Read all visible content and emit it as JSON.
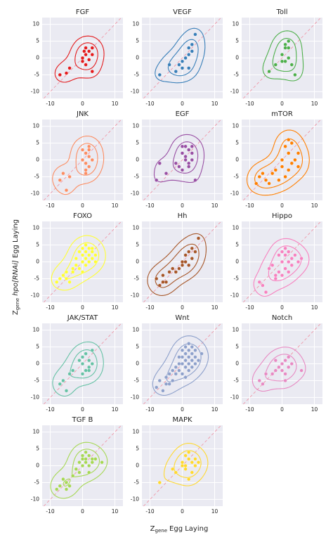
{
  "axis_labels": {
    "x": {
      "symbol": "Z",
      "subscript": "gene",
      "text": "Egg Laying"
    },
    "y": {
      "symbol": "Z",
      "subscript": "gene",
      "italic": "hpo[RNAi]",
      "text": "Egg Laying"
    }
  },
  "chart_data": [
    {
      "type": "scatter",
      "title": "FGF",
      "color": "#e41a1c",
      "xlim": [
        -12.5,
        12.5
      ],
      "ylim": [
        -12,
        12
      ],
      "xticks": [
        -10,
        0,
        10
      ],
      "yticks": [
        -10,
        -5,
        0,
        5,
        10
      ],
      "grid": true,
      "x": [
        -7,
        -5,
        -4,
        0,
        0,
        1,
        1,
        2,
        2,
        3,
        3,
        3,
        1,
        0.5
      ],
      "values": [
        -5,
        -4.5,
        -3,
        -1,
        0,
        1,
        3,
        2,
        -0.5,
        3,
        -4,
        1,
        -2,
        2
      ]
    },
    {
      "type": "scatter",
      "title": "VEGF",
      "color": "#377eb8",
      "xlim": [
        -12.5,
        12.5
      ],
      "ylim": [
        -12,
        12
      ],
      "xticks": [
        -10,
        0,
        10
      ],
      "yticks": [
        -10,
        -5,
        0,
        5,
        10
      ],
      "grid": true,
      "x": [
        -7,
        -4,
        -2,
        0,
        1,
        2,
        2,
        3,
        3,
        2,
        0,
        4,
        -1
      ],
      "values": [
        -5,
        -2,
        -4,
        -1,
        0,
        3,
        -3,
        2,
        4,
        1,
        -3,
        7,
        -2
      ]
    },
    {
      "type": "scatter",
      "title": "Toll",
      "color": "#4daf4a",
      "xlim": [
        -12.5,
        12.5
      ],
      "ylim": [
        -12,
        12
      ],
      "xticks": [
        -10,
        0,
        10
      ],
      "yticks": [
        -10,
        -5,
        0,
        5,
        10
      ],
      "grid": true,
      "x": [
        -4,
        -2,
        0,
        1,
        1,
        2,
        3,
        4,
        0,
        2,
        1,
        2
      ],
      "values": [
        -4,
        -2,
        1,
        4,
        3,
        3,
        -2,
        -5,
        -1,
        0,
        -1,
        5
      ]
    },
    {
      "type": "scatter",
      "title": "JNK",
      "color": "#fc8d62",
      "xlim": [
        -12.5,
        12.5
      ],
      "ylim": [
        -12,
        12
      ],
      "xticks": [
        -10,
        0,
        10
      ],
      "yticks": [
        -10,
        -5,
        0,
        5,
        10
      ],
      "grid": true,
      "x": [
        -7,
        -6,
        -5,
        -4,
        0,
        1,
        1,
        2,
        2,
        1,
        2,
        3,
        0,
        1,
        2
      ],
      "values": [
        -6,
        -4,
        -9,
        -5,
        3,
        2,
        -1,
        1,
        -2,
        -3,
        3,
        0,
        0,
        -4,
        4
      ]
    },
    {
      "type": "scatter",
      "title": "EGF",
      "color": "#984ea3",
      "xlim": [
        -12.5,
        12.5
      ],
      "ylim": [
        -12,
        12
      ],
      "xticks": [
        -10,
        0,
        10
      ],
      "yticks": [
        -10,
        -5,
        0,
        5,
        10
      ],
      "grid": true,
      "x": [
        -8,
        -7,
        -5,
        -2,
        -1,
        0,
        0,
        1,
        1,
        2,
        2,
        2,
        3,
        3,
        4,
        0,
        1,
        3
      ],
      "values": [
        -6,
        -1,
        -4,
        -1,
        -2,
        2,
        4,
        1,
        0,
        -1,
        -2,
        3,
        4,
        2,
        -6,
        -3,
        4,
        0
      ]
    },
    {
      "type": "scatter",
      "title": "mTOR",
      "color": "#ff7f00",
      "xlim": [
        -12.5,
        12.5
      ],
      "ylim": [
        -12,
        12
      ],
      "xticks": [
        -10,
        0,
        10
      ],
      "yticks": [
        -10,
        -5,
        0,
        5,
        10
      ],
      "grid": true,
      "x": [
        -8,
        -7,
        -6,
        -5,
        -4,
        -3,
        -2,
        0,
        0,
        1,
        2,
        2,
        3,
        3,
        4,
        5,
        -1,
        1,
        5,
        2
      ],
      "values": [
        -7,
        -5,
        -4,
        -6,
        -7,
        -4,
        -3,
        -2,
        0,
        4,
        6,
        2,
        5,
        -1,
        0,
        -2,
        -6,
        -5,
        2,
        -3
      ]
    },
    {
      "type": "scatter",
      "title": "FOXO",
      "color": "#ffff33",
      "xlim": [
        -12.5,
        12.5
      ],
      "ylim": [
        -12,
        12
      ],
      "xticks": [
        -10,
        0,
        10
      ],
      "yticks": [
        -10,
        -5,
        0,
        5,
        10
      ],
      "grid": true,
      "x": [
        -8,
        -7,
        -6,
        -5,
        -4,
        -3,
        -2,
        -1,
        0,
        0,
        1,
        1,
        2,
        2,
        3,
        3,
        4,
        -1,
        0,
        1,
        2,
        -2,
        3,
        4,
        1,
        0,
        -5,
        -3
      ],
      "values": [
        -6,
        -5,
        -4,
        -3,
        -6,
        -2,
        -1,
        -2,
        0,
        2,
        1,
        3,
        2,
        4,
        3,
        1,
        2,
        3,
        4,
        -1,
        0,
        1,
        4,
        0,
        5,
        -3,
        -5,
        -3
      ]
    },
    {
      "type": "scatter",
      "title": "Hh",
      "color": "#a65628",
      "xlim": [
        -12.5,
        12.5
      ],
      "ylim": [
        -12,
        12
      ],
      "xticks": [
        -10,
        0,
        10
      ],
      "yticks": [
        -10,
        -5,
        0,
        5,
        10
      ],
      "grid": true,
      "x": [
        -8,
        -7,
        -6,
        -5,
        -4,
        -3,
        -2,
        -1,
        0,
        0,
        1,
        2,
        2,
        3,
        3,
        4,
        5,
        -6,
        1
      ],
      "values": [
        -5,
        -7,
        -4,
        -6,
        -3,
        -2,
        -3,
        -2,
        0,
        -1,
        2,
        3,
        -1,
        1,
        4,
        3,
        7,
        -6,
        0
      ]
    },
    {
      "type": "scatter",
      "title": "Hippo",
      "color": "#f781bf",
      "xlim": [
        -12.5,
        12.5
      ],
      "ylim": [
        -12,
        12
      ],
      "xticks": [
        -10,
        0,
        10
      ],
      "yticks": [
        -10,
        -5,
        0,
        5,
        10
      ],
      "grid": true,
      "x": [
        -7,
        -6,
        -5,
        -4,
        -3,
        -2,
        -1,
        0,
        0,
        1,
        1,
        2,
        2,
        3,
        3,
        4,
        5,
        6,
        -1,
        0,
        2,
        1,
        -2
      ],
      "values": [
        -6,
        -7,
        -9,
        -2,
        -1,
        -4,
        -3,
        0,
        3,
        2,
        -2,
        3,
        -3,
        1,
        -1,
        2,
        0,
        1,
        2,
        -4,
        0,
        4,
        -5
      ]
    },
    {
      "type": "scatter",
      "title": "JAK/STAT",
      "color": "#66c2a5",
      "xlim": [
        -12.5,
        12.5
      ],
      "ylim": [
        -12,
        12
      ],
      "xticks": [
        -10,
        0,
        10
      ],
      "yticks": [
        -10,
        -5,
        0,
        5,
        10
      ],
      "grid": true,
      "x": [
        -7,
        -6,
        -5,
        -4,
        -3,
        0,
        0,
        1,
        1,
        2,
        2,
        3,
        -1,
        0,
        2,
        3
      ],
      "values": [
        -6,
        -5,
        -8,
        -3,
        -2,
        0,
        2,
        -2,
        3,
        1,
        -1,
        4,
        1,
        -3,
        -2,
        0
      ]
    },
    {
      "type": "scatter",
      "title": "Wnt",
      "color": "#8da0cb",
      "xlim": [
        -12.5,
        12.5
      ],
      "ylim": [
        -12,
        12
      ],
      "xticks": [
        -10,
        0,
        10
      ],
      "yticks": [
        -10,
        -5,
        0,
        5,
        10
      ],
      "grid": true,
      "x": [
        -8,
        -7,
        -6,
        -5,
        -4,
        -4,
        -3,
        -3,
        -2,
        -2,
        -1,
        -1,
        0,
        0,
        0,
        1,
        1,
        1,
        1,
        2,
        2,
        2,
        2,
        3,
        3,
        3,
        4,
        4,
        5,
        0,
        -1,
        2,
        3,
        1,
        6,
        -5,
        4
      ],
      "values": [
        -7,
        -5,
        -8,
        -4,
        -6,
        -3,
        -2,
        -5,
        -1,
        -3,
        0,
        -2,
        0,
        2,
        -3,
        1,
        3,
        -1,
        5,
        2,
        0,
        4,
        -2,
        3,
        1,
        -1,
        2,
        0,
        1,
        4,
        2,
        6,
        5,
        -4,
        3,
        -6,
        4
      ]
    },
    {
      "type": "scatter",
      "title": "Notch",
      "color": "#e78ac3",
      "xlim": [
        -12.5,
        12.5
      ],
      "ylim": [
        -12,
        12
      ],
      "xticks": [
        -10,
        0,
        10
      ],
      "yticks": [
        -10,
        -5,
        0,
        5,
        10
      ],
      "grid": true,
      "x": [
        -7,
        -6,
        -5,
        -3,
        -2,
        -1,
        0,
        0,
        1,
        1,
        2,
        2,
        3,
        -2,
        6,
        1
      ],
      "values": [
        -5,
        -6,
        -3,
        -3,
        -2,
        -1,
        0,
        -2,
        1,
        -3,
        2,
        -1,
        0,
        1,
        -2,
        -5
      ]
    },
    {
      "type": "scatter",
      "title": "TGF B",
      "color": "#a6d854",
      "xlim": [
        -12.5,
        12.5
      ],
      "ylim": [
        -12,
        12
      ],
      "xticks": [
        -10,
        0,
        10
      ],
      "yticks": [
        -10,
        -5,
        0,
        5,
        10
      ],
      "grid": true,
      "x": [
        -8,
        -7,
        -6,
        -5,
        -4,
        -3,
        -2,
        -1,
        0,
        0,
        0,
        1,
        1,
        2,
        2,
        3,
        4,
        6,
        2,
        1,
        -1,
        -5,
        3
      ],
      "values": [
        -7,
        -6,
        -4,
        -5,
        -6,
        -3,
        -1,
        -2,
        0,
        2,
        3,
        1,
        2,
        0,
        3,
        2,
        2,
        1,
        -2,
        4,
        1,
        -7,
        1
      ]
    },
    {
      "type": "scatter",
      "title": "MAPK",
      "color": "#ffd92f",
      "xlim": [
        -12.5,
        12.5
      ],
      "ylim": [
        -12,
        12
      ],
      "xticks": [
        -10,
        0,
        10
      ],
      "yticks": [
        -10,
        -5,
        0,
        5,
        10
      ],
      "grid": true,
      "x": [
        -7,
        -3,
        -2,
        0,
        0,
        1,
        1,
        2,
        2,
        2,
        3,
        4,
        4,
        3,
        1,
        5
      ],
      "values": [
        -5,
        -1,
        -2,
        0,
        1,
        -1,
        3,
        2,
        4,
        -4,
        1,
        2,
        0,
        -2,
        0,
        1
      ]
    }
  ]
}
